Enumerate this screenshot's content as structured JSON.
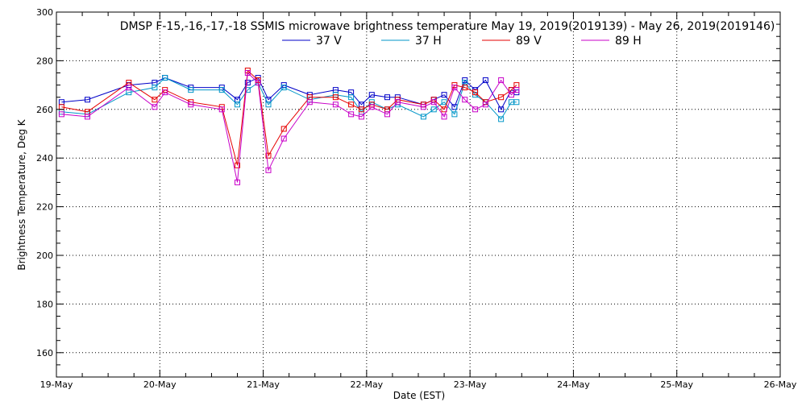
{
  "chart_data": {
    "type": "line",
    "title": "DMSP F-15,-16,-17,-18 SSMIS microwave brightness temperature May 19, 2019(2019139) - May 26, 2019(2019146)",
    "xlabel": "Date (EST)",
    "ylabel": "Brightness Temperature, Deg K",
    "x_tick_labels": [
      "19-May",
      "20-May",
      "21-May",
      "22-May",
      "23-May",
      "24-May",
      "25-May",
      "26-May"
    ],
    "xlim": [
      0,
      7
    ],
    "ylim": [
      150,
      300
    ],
    "y_ticks": [
      160,
      180,
      200,
      220,
      240,
      260,
      280,
      300
    ],
    "grid": true,
    "legend_placement": "top-center",
    "series": [
      {
        "name": "37 V",
        "color": "#0000c8",
        "x": [
          0.05,
          0.3,
          0.7,
          0.95,
          1.05,
          1.3,
          1.6,
          1.75,
          1.85,
          1.95,
          2.05,
          2.2,
          2.45,
          2.7,
          2.85,
          2.95,
          3.05,
          3.2,
          3.3,
          3.55,
          3.65,
          3.75,
          3.85,
          3.95,
          4.05,
          4.15,
          4.3,
          4.4,
          4.45
        ],
        "values": [
          263,
          264,
          270,
          271,
          273,
          269,
          269,
          264,
          271,
          273,
          264,
          270,
          266,
          268,
          267,
          262,
          266,
          265,
          265,
          262,
          264,
          266,
          261,
          272,
          268,
          272,
          260,
          268,
          267
        ]
      },
      {
        "name": "37 H",
        "color": "#0096c8",
        "x": [
          0.05,
          0.3,
          0.7,
          0.95,
          1.05,
          1.3,
          1.6,
          1.75,
          1.85,
          1.95,
          2.05,
          2.2,
          2.45,
          2.7,
          2.85,
          2.95,
          3.05,
          3.2,
          3.3,
          3.55,
          3.65,
          3.75,
          3.85,
          3.95,
          4.05,
          4.15,
          4.3,
          4.4,
          4.45
        ],
        "values": [
          259,
          258,
          267,
          269,
          273,
          268,
          268,
          262,
          268,
          271,
          262,
          269,
          264,
          266,
          265,
          259,
          263,
          260,
          262,
          257,
          260,
          263,
          258,
          271,
          266,
          263,
          256,
          263,
          263
        ]
      },
      {
        "name": "89 V",
        "color": "#e60000",
        "x": [
          0.05,
          0.3,
          0.7,
          0.95,
          1.05,
          1.3,
          1.6,
          1.75,
          1.85,
          1.95,
          2.05,
          2.2,
          2.45,
          2.7,
          2.85,
          2.95,
          3.05,
          3.2,
          3.3,
          3.55,
          3.65,
          3.75,
          3.85,
          3.95,
          4.05,
          4.15,
          4.3,
          4.4,
          4.45
        ],
        "values": [
          261,
          259,
          271,
          264,
          268,
          263,
          261,
          237,
          276,
          272,
          241,
          252,
          265,
          265,
          262,
          260,
          262,
          260,
          264,
          262,
          264,
          260,
          270,
          269,
          267,
          263,
          265,
          268,
          270
        ]
      },
      {
        "name": "89 H",
        "color": "#c800c8",
        "x": [
          0.05,
          0.3,
          0.7,
          0.95,
          1.05,
          1.3,
          1.6,
          1.75,
          1.85,
          1.95,
          2.05,
          2.2,
          2.45,
          2.7,
          2.85,
          2.95,
          3.05,
          3.2,
          3.3,
          3.55,
          3.65,
          3.75,
          3.85,
          3.95,
          4.05,
          4.15,
          4.3,
          4.4,
          4.45
        ],
        "values": [
          258,
          257,
          269,
          261,
          267,
          262,
          260,
          230,
          275,
          271,
          235,
          248,
          263,
          262,
          258,
          257,
          261,
          258,
          263,
          261,
          263,
          257,
          269,
          264,
          260,
          262,
          272,
          266,
          268
        ]
      }
    ]
  }
}
